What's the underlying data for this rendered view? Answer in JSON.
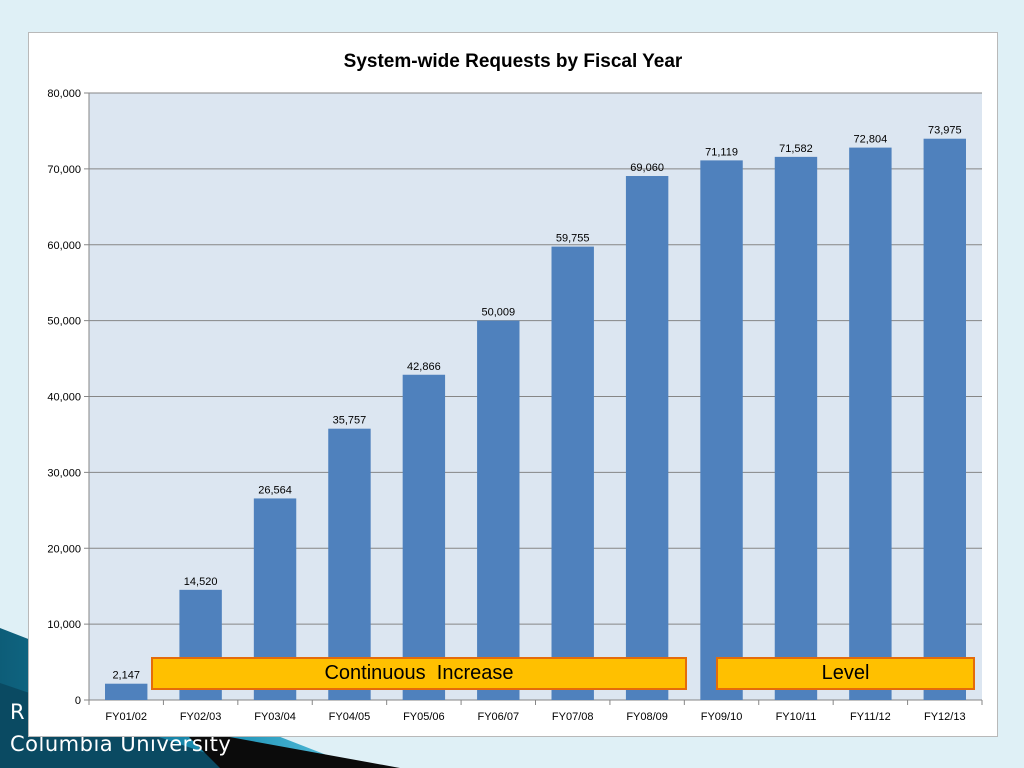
{
  "slide": {
    "footer_line1": "R",
    "footer_line2": "Columbia University"
  },
  "callouts": {
    "increase": "Continuous  Increase",
    "level": "Level"
  },
  "colors": {
    "bar": "#4f81bd",
    "plot_bg": "#dce6f1",
    "grid": "#868686",
    "callout_fill": "#ffc000",
    "callout_border": "#e46c0a"
  },
  "chart_data": {
    "type": "bar",
    "title": "System-wide Requests by Fiscal Year",
    "xlabel": "",
    "ylabel": "",
    "categories": [
      "FY01/02",
      "FY02/03",
      "FY03/04",
      "FY04/05",
      "FY05/06",
      "FY06/07",
      "FY07/08",
      "FY08/09",
      "FY09/10",
      "FY10/11",
      "FY11/12",
      "FY12/13"
    ],
    "values": [
      2147,
      14520,
      26564,
      35757,
      42866,
      50009,
      59755,
      69060,
      71119,
      71582,
      72804,
      73975
    ],
    "data_labels": [
      "2,147",
      "14,520",
      "26,564",
      "35,757",
      "42,866",
      "50,009",
      "59,755",
      "69,060",
      "71,119",
      "71,582",
      "72,804",
      "73,975"
    ],
    "ylim": [
      0,
      80000
    ],
    "yticks": [
      0,
      10000,
      20000,
      30000,
      40000,
      50000,
      60000,
      70000,
      80000
    ],
    "ytick_labels": [
      "0",
      "10,000",
      "20,000",
      "30,000",
      "40,000",
      "50,000",
      "60,000",
      "70,000",
      "80,000"
    ],
    "grid": true,
    "legend": "none"
  }
}
